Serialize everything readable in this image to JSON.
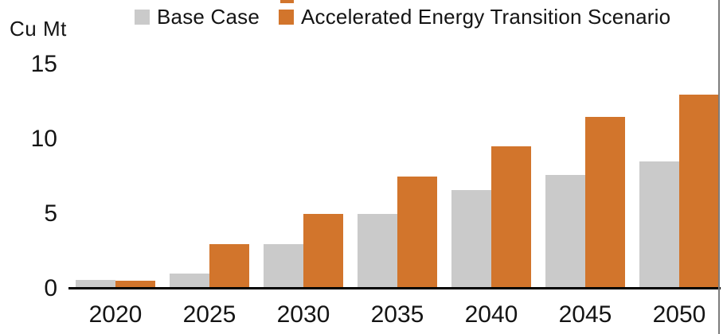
{
  "chart_data": {
    "type": "bar",
    "title": "",
    "ylabel": "Cu Mt",
    "xlabel": "",
    "categories": [
      "2020",
      "2025",
      "2030",
      "2035",
      "2040",
      "2045",
      "2050"
    ],
    "series": [
      {
        "name": "Base Case",
        "color": "#CACACA",
        "values": [
          0.6,
          1.0,
          3.0,
          5.0,
          6.6,
          7.6,
          8.5
        ]
      },
      {
        "name": "Accelerated Energy Transition Scenario",
        "color": "#D2752C",
        "values": [
          0.55,
          3.0,
          5.0,
          7.5,
          9.5,
          11.5,
          13.0
        ]
      }
    ],
    "ylim": [
      0,
      15
    ],
    "yticks": [
      0,
      5,
      10,
      15
    ],
    "grid": false,
    "legend_position": "top"
  },
  "colors": {
    "axis": "#000000",
    "text": "#141414",
    "right_border": "#7d7d7d"
  }
}
